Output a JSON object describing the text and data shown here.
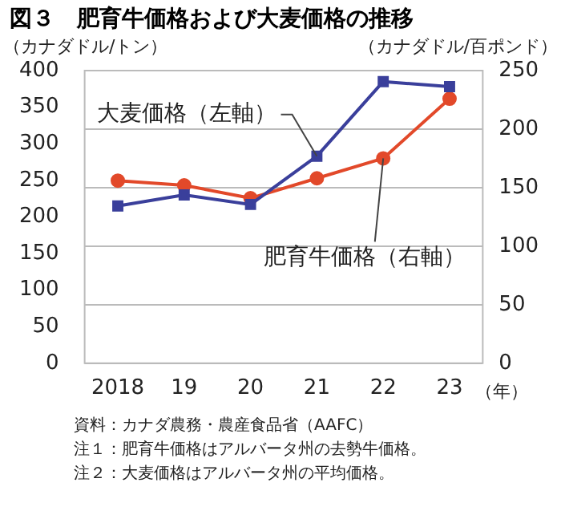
{
  "chart_data": {
    "type": "line",
    "title": "図３　肥育牛価格および大麦価格の推移",
    "ylabel": "（カナダドル/トン）",
    "y2label": "（カナダドル/百ポンド）",
    "xlabel": "（年）",
    "categories": [
      "2018",
      "19",
      "20",
      "21",
      "22",
      "23"
    ],
    "series": [
      {
        "name": "大麦価格（左軸）",
        "color": "#3a3f9b",
        "marker": "square",
        "values": [
          215,
          230,
          217,
          283,
          385,
          378
        ]
      },
      {
        "name": "肥育牛価格（右軸）",
        "color": "#e2492a",
        "marker": "circle",
        "axis": "y2",
        "values": [
          156,
          152,
          141,
          158,
          175,
          226
        ]
      }
    ],
    "ylim": [
      0,
      400
    ],
    "yticks": [
      0,
      50,
      100,
      150,
      200,
      250,
      300,
      350,
      400
    ],
    "y2lim": [
      0,
      250
    ],
    "y2ticks": [
      0,
      50,
      100,
      150,
      200,
      250
    ],
    "grid": "y",
    "legend": false,
    "annotations": [
      "資料：カナダ農務・農産食品省（AAFC）",
      "注１：肥育牛価格はアルバータ州の去勢牛価格。",
      "注２：大麦価格はアルバータ州の平均価格。"
    ]
  }
}
